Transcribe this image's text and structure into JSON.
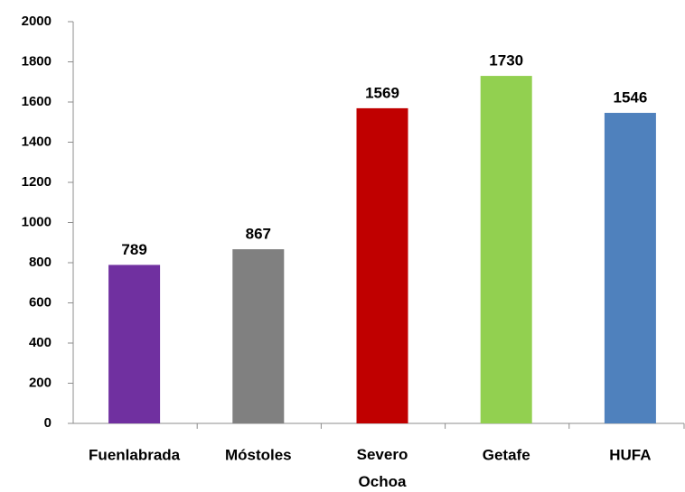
{
  "chart_data": {
    "type": "bar",
    "categories": [
      "Fuenlabrada",
      "Móstoles",
      "Severo Ochoa",
      "Getafe",
      "HUFA"
    ],
    "values": [
      789,
      867,
      1569,
      1730,
      1546
    ],
    "colors": [
      "#7030a0",
      "#808080",
      "#c00000",
      "#92d050",
      "#4f81bd"
    ],
    "ylim": [
      0,
      2000
    ],
    "yticks": [
      0,
      200,
      400,
      600,
      800,
      1000,
      1200,
      1400,
      1600,
      1800,
      2000
    ],
    "grid": false
  }
}
